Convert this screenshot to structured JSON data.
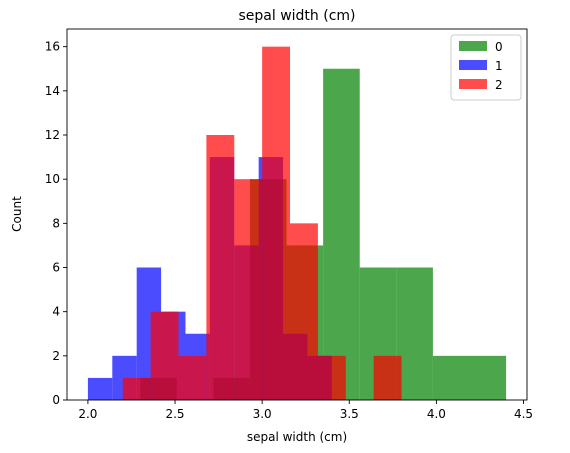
{
  "chart_data": {
    "type": "bar",
    "subtype": "overlaid-histogram",
    "title": "sepal width (cm)",
    "xlabel": "sepal width (cm)",
    "ylabel": "Count",
    "xlim": [
      1.88,
      4.52
    ],
    "ylim": [
      0,
      16.8
    ],
    "xticks": [
      2.0,
      2.5,
      3.0,
      3.5,
      4.0,
      4.5
    ],
    "xtick_labels": [
      "2.0",
      "2.5",
      "3.0",
      "3.5",
      "4.0",
      "4.5"
    ],
    "yticks": [
      0,
      2,
      4,
      6,
      8,
      10,
      12,
      14,
      16
    ],
    "ytick_labels": [
      "0",
      "2",
      "4",
      "6",
      "8",
      "10",
      "12",
      "14",
      "16"
    ],
    "grid": false,
    "legend_position": "upper right",
    "alpha": 0.7,
    "series": [
      {
        "name": "0",
        "color": "#008000",
        "bin_edges": [
          2.3,
          2.51,
          2.72,
          2.93,
          3.14,
          3.35,
          3.56,
          3.77,
          3.98,
          4.19,
          4.4
        ],
        "counts": [
          1,
          0,
          1,
          10,
          7,
          15,
          6,
          6,
          2,
          2
        ]
      },
      {
        "name": "1",
        "color": "#0000ff",
        "bin_edges": [
          2.0,
          2.14,
          2.28,
          2.42,
          2.56,
          2.7,
          2.84,
          2.98,
          3.12,
          3.26,
          3.4
        ],
        "counts": [
          1,
          2,
          6,
          4,
          3,
          11,
          7,
          11,
          3,
          2
        ]
      },
      {
        "name": "2",
        "color": "#ff0000",
        "bin_edges": [
          2.2,
          2.36,
          2.52,
          2.68,
          2.84,
          3.0,
          3.16,
          3.32,
          3.48,
          3.64,
          3.8
        ],
        "counts": [
          1,
          4,
          2,
          12,
          10,
          16,
          8,
          2,
          0,
          2
        ]
      }
    ]
  }
}
